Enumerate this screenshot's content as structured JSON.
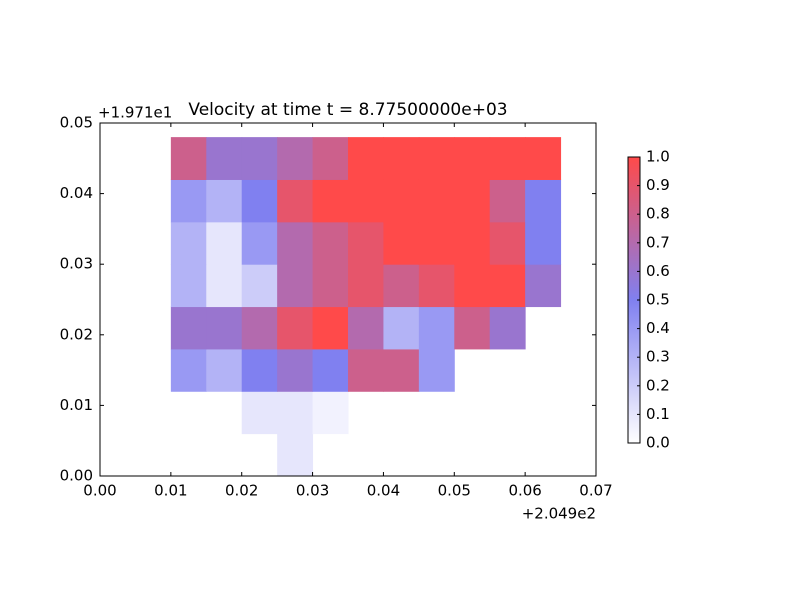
{
  "chart_data": {
    "type": "heatmap",
    "title": "Velocity at time t = 8.77500000e+03",
    "x_offset_label": "+2.049e2",
    "y_offset_label": "+1.971e1",
    "x": [
      0.0125,
      0.0175,
      0.0225,
      0.0275,
      0.0325,
      0.0375,
      0.0425,
      0.0475,
      0.0525,
      0.0575,
      0.0625
    ],
    "y": [
      0.003,
      0.009,
      0.015,
      0.021,
      0.027,
      0.033,
      0.039,
      0.045
    ],
    "values": [
      [
        null,
        null,
        null,
        0.1,
        null,
        null,
        null,
        null,
        null,
        null,
        null
      ],
      [
        null,
        null,
        0.1,
        0.1,
        0.05,
        null,
        null,
        null,
        null,
        null,
        null
      ],
      [
        0.4,
        0.3,
        0.5,
        0.6,
        0.5,
        0.8,
        0.8,
        0.4,
        null,
        null,
        null
      ],
      [
        0.6,
        0.6,
        0.7,
        0.9,
        1.0,
        0.7,
        0.3,
        0.4,
        0.8,
        0.6,
        null
      ],
      [
        0.3,
        0.1,
        0.2,
        0.7,
        0.8,
        0.9,
        0.8,
        0.9,
        1.0,
        1.0,
        0.6
      ],
      [
        0.3,
        0.1,
        0.4,
        0.7,
        0.8,
        0.9,
        1.0,
        1.0,
        1.0,
        0.9,
        0.5
      ],
      [
        0.4,
        0.3,
        0.5,
        0.9,
        1.0,
        1.0,
        1.0,
        1.0,
        1.0,
        0.8,
        0.5
      ],
      [
        0.8,
        0.6,
        0.6,
        0.7,
        0.8,
        1.0,
        1.0,
        1.0,
        1.0,
        1.0,
        1.0
      ]
    ],
    "xlim": [
      0,
      0.07
    ],
    "ylim": [
      0,
      0.05
    ],
    "xticks": [
      {
        "value": 0,
        "label": "0.00"
      },
      {
        "value": 0.01,
        "label": "0.01"
      },
      {
        "value": 0.02,
        "label": "0.02"
      },
      {
        "value": 0.03,
        "label": "0.03"
      },
      {
        "value": 0.04,
        "label": "0.04"
      },
      {
        "value": 0.05,
        "label": "0.05"
      },
      {
        "value": 0.06,
        "label": "0.06"
      },
      {
        "value": 0.07,
        "label": "0.07"
      }
    ],
    "yticks": [
      {
        "value": 0,
        "label": "0.00"
      },
      {
        "value": 0.01,
        "label": "0.01"
      },
      {
        "value": 0.02,
        "label": "0.02"
      },
      {
        "value": 0.03,
        "label": "0.03"
      },
      {
        "value": 0.04,
        "label": "0.04"
      },
      {
        "value": 0.05,
        "label": "0.05"
      }
    ],
    "colormap": [
      "#ffffff",
      "#8080f0",
      "#ff4a4a"
    ],
    "colorbar": {
      "lim": [
        0,
        1
      ],
      "ticks": [
        {
          "value": 0,
          "label": "0.0"
        },
        {
          "value": 0.1,
          "label": "0.1"
        },
        {
          "value": 0.2,
          "label": "0.2"
        },
        {
          "value": 0.3,
          "label": "0.3"
        },
        {
          "value": 0.4,
          "label": "0.4"
        },
        {
          "value": 0.5,
          "label": "0.5"
        },
        {
          "value": 0.6,
          "label": "0.6"
        },
        {
          "value": 0.7,
          "label": "0.7"
        },
        {
          "value": 0.8,
          "label": "0.8"
        },
        {
          "value": 0.9,
          "label": "0.9"
        },
        {
          "value": 1,
          "label": "1.0"
        }
      ]
    }
  }
}
